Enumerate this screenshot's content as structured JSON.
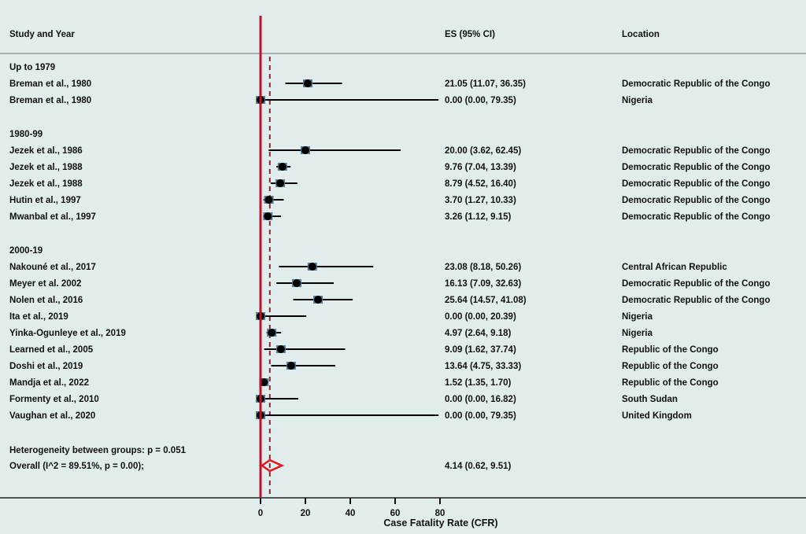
{
  "chart_data": {
    "type": "forest",
    "headers": {
      "study": "Study and Year",
      "es": "ES (95% CI)",
      "location": "Location"
    },
    "xlabel": "Case Fatality Rate (CFR)",
    "xticks": [
      0,
      20,
      40,
      60,
      80
    ],
    "xlim": [
      0,
      80
    ],
    "null_line": 0,
    "overall_line": 4.14,
    "colors": {
      "null_line": "#c0142a",
      "overall_line": "#8b2a33",
      "diamond": "#e8141e",
      "marker": "#000000",
      "background": "#e1ecec"
    },
    "groups": [
      {
        "label": "Up to 1979",
        "studies": [
          {
            "study": "Breman et al., 1980",
            "es": 21.05,
            "lo": 11.07,
            "hi": 36.35,
            "es_text": "21.05 (11.07, 36.35)",
            "location": "Democratic Republic of the Congo"
          },
          {
            "study": "Breman et al., 1980",
            "es": 0.0,
            "lo": 0.0,
            "hi": 79.35,
            "es_text": "0.00 (0.00, 79.35)",
            "location": "Nigeria"
          }
        ]
      },
      {
        "label": "1980-99",
        "studies": [
          {
            "study": "Jezek et al., 1986",
            "es": 20.0,
            "lo": 3.62,
            "hi": 62.45,
            "es_text": "20.00 (3.62, 62.45)",
            "location": "Democratic Republic of the Congo"
          },
          {
            "study": "Jezek et al., 1988",
            "es": 9.76,
            "lo": 7.04,
            "hi": 13.39,
            "es_text": "9.76 (7.04, 13.39)",
            "location": "Democratic Republic of the Congo"
          },
          {
            "study": "Jezek et al., 1988",
            "es": 8.79,
            "lo": 4.52,
            "hi": 16.4,
            "es_text": "8.79 (4.52, 16.40)",
            "location": "Democratic Republic of the Congo"
          },
          {
            "study": "Hutin et al., 1997",
            "es": 3.7,
            "lo": 1.27,
            "hi": 10.33,
            "es_text": "3.70 (1.27, 10.33)",
            "location": "Democratic Republic of the Congo"
          },
          {
            "study": "Mwanbal et al., 1997",
            "es": 3.26,
            "lo": 1.12,
            "hi": 9.15,
            "es_text": "3.26 (1.12, 9.15)",
            "location": "Democratic Republic of the Congo"
          }
        ]
      },
      {
        "label": "2000-19",
        "studies": [
          {
            "study": "Nakouné et al., 2017",
            "es": 23.08,
            "lo": 8.18,
            "hi": 50.26,
            "es_text": "23.08 (8.18, 50.26)",
            "location": "Central African Republic"
          },
          {
            "study": "Meyer et al. 2002",
            "es": 16.13,
            "lo": 7.09,
            "hi": 32.63,
            "es_text": "16.13 (7.09, 32.63)",
            "location": "Democratic Republic of the Congo"
          },
          {
            "study": "Nolen et al., 2016",
            "es": 25.64,
            "lo": 14.57,
            "hi": 41.08,
            "es_text": "25.64 (14.57, 41.08)",
            "location": "Democratic Republic of the Congo"
          },
          {
            "study": "Ita et al., 2019",
            "es": 0.0,
            "lo": 0.0,
            "hi": 20.39,
            "es_text": "0.00 (0.00, 20.39)",
            "location": "Nigeria"
          },
          {
            "study": "Yinka-Ogunleye et al., 2019",
            "es": 4.97,
            "lo": 2.64,
            "hi": 9.18,
            "es_text": "4.97 (2.64, 9.18)",
            "location": "Nigeria"
          },
          {
            "study": "Learned et al., 2005",
            "es": 9.09,
            "lo": 1.62,
            "hi": 37.74,
            "es_text": "9.09 (1.62, 37.74)",
            "location": "Republic of the Congo"
          },
          {
            "study": "Doshi et al., 2019",
            "es": 13.64,
            "lo": 4.75,
            "hi": 33.33,
            "es_text": "13.64 (4.75, 33.33)",
            "location": "Republic of the Congo"
          },
          {
            "study": "Mandja et al., 2022",
            "es": 1.52,
            "lo": 1.35,
            "hi": 1.7,
            "es_text": "1.52 (1.35, 1.70)",
            "location": "Republic of the Congo"
          },
          {
            "study": "Formenty et al., 2010",
            "es": 0.0,
            "lo": 0.0,
            "hi": 16.82,
            "es_text": "0.00 (0.00, 16.82)",
            "location": "South Sudan"
          },
          {
            "study": "Vaughan et al., 2020",
            "es": 0.0,
            "lo": 0.0,
            "hi": 79.35,
            "es_text": "0.00 (0.00, 79.35)",
            "location": "United Kingdom"
          }
        ]
      }
    ],
    "heterogeneity": "Heterogeneity between groups: p = 0.051",
    "overall": {
      "label": "Overall  (I^2 = 89.51%, p = 0.00);",
      "es": 4.14,
      "lo": 0.62,
      "hi": 9.51,
      "es_text": "4.14 (0.62, 9.51)"
    }
  }
}
